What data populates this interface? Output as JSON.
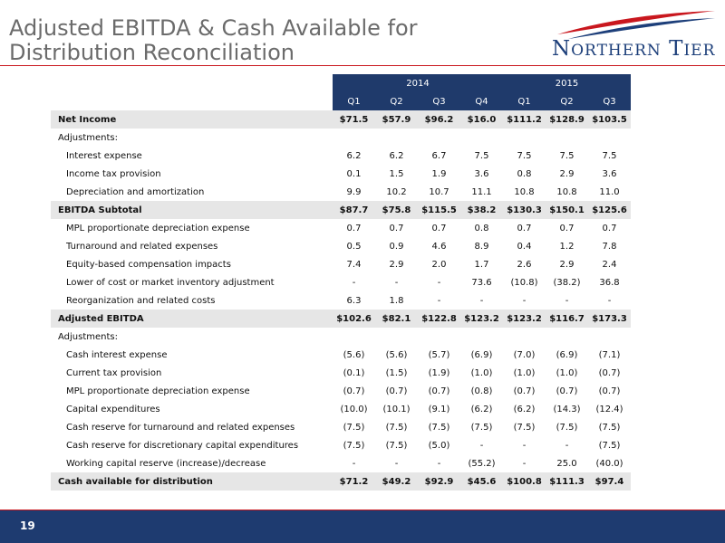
{
  "title": "Adjusted EBITDA & Cash Available for Distribution Reconciliation",
  "logo": {
    "text_first": "N",
    "text_rest": "ORTHERN",
    "text2_first": "T",
    "text2_rest": "IER",
    "accent_color": "#c9171e",
    "brand_color": "#1d3f7a"
  },
  "years": [
    "2014",
    "2015"
  ],
  "quarters": [
    "Q1",
    "Q2",
    "Q3",
    "Q4",
    "Q1",
    "Q2",
    "Q3"
  ],
  "rows": [
    {
      "label": "Net Income",
      "style": "shade",
      "values": [
        "$71.5",
        "$57.9",
        "$96.2",
        "$16.0",
        "$111.2",
        "$128.9",
        "$103.5"
      ]
    },
    {
      "label": "Adjustments:",
      "style": "plain",
      "values": []
    },
    {
      "label": "Interest expense",
      "style": "indent",
      "values": [
        "6.2",
        "6.2",
        "6.7",
        "7.5",
        "7.5",
        "7.5",
        "7.5"
      ]
    },
    {
      "label": "Income tax provision",
      "style": "indent",
      "values": [
        "0.1",
        "1.5",
        "1.9",
        "3.6",
        "0.8",
        "2.9",
        "3.6"
      ]
    },
    {
      "label": "Depreciation and amortization",
      "style": "indent",
      "values": [
        "9.9",
        "10.2",
        "10.7",
        "11.1",
        "10.8",
        "10.8",
        "11.0"
      ]
    },
    {
      "label": "EBITDA Subtotal",
      "style": "shade",
      "values": [
        "$87.7",
        "$75.8",
        "$115.5",
        "$38.2",
        "$130.3",
        "$150.1",
        "$125.6"
      ]
    },
    {
      "label": "MPL proportionate depreciation expense",
      "style": "indent",
      "values": [
        "0.7",
        "0.7",
        "0.7",
        "0.8",
        "0.7",
        "0.7",
        "0.7"
      ]
    },
    {
      "label": "Turnaround and related expenses",
      "style": "indent",
      "values": [
        "0.5",
        "0.9",
        "4.6",
        "8.9",
        "0.4",
        "1.2",
        "7.8"
      ]
    },
    {
      "label": "Equity-based compensation impacts",
      "style": "indent",
      "values": [
        "7.4",
        "2.9",
        "2.0",
        "1.7",
        "2.6",
        "2.9",
        "2.4"
      ]
    },
    {
      "label": "Lower of cost or market inventory adjustment",
      "style": "indent",
      "values": [
        "-",
        "-",
        "-",
        "73.6",
        "(10.8)",
        "(38.2)",
        "36.8"
      ]
    },
    {
      "label": "Reorganization and related costs",
      "style": "indent",
      "values": [
        "6.3",
        "1.8",
        "-",
        "-",
        "-",
        "-",
        "-"
      ]
    },
    {
      "label": "Adjusted EBITDA",
      "style": "shade",
      "values": [
        "$102.6",
        "$82.1",
        "$122.8",
        "$123.2",
        "$123.2",
        "$116.7",
        "$173.3"
      ]
    },
    {
      "label": "Adjustments:",
      "style": "plain",
      "values": []
    },
    {
      "label": "Cash interest expense",
      "style": "indent",
      "values": [
        "(5.6)",
        "(5.6)",
        "(5.7)",
        "(6.9)",
        "(7.0)",
        "(6.9)",
        "(7.1)"
      ]
    },
    {
      "label": "Current tax provision",
      "style": "indent",
      "values": [
        "(0.1)",
        "(1.5)",
        "(1.9)",
        "(1.0)",
        "(1.0)",
        "(1.0)",
        "(0.7)"
      ]
    },
    {
      "label": "MPL proportionate depreciation expense",
      "style": "indent",
      "values": [
        "(0.7)",
        "(0.7)",
        "(0.7)",
        "(0.8)",
        "(0.7)",
        "(0.7)",
        "(0.7)"
      ]
    },
    {
      "label": "Capital expenditures",
      "style": "indent",
      "values": [
        "(10.0)",
        "(10.1)",
        "(9.1)",
        "(6.2)",
        "(6.2)",
        "(14.3)",
        "(12.4)"
      ]
    },
    {
      "label": "Cash reserve for turnaround and related expenses",
      "style": "indent",
      "values": [
        "(7.5)",
        "(7.5)",
        "(7.5)",
        "(7.5)",
        "(7.5)",
        "(7.5)",
        "(7.5)"
      ]
    },
    {
      "label": "Cash reserve for discretionary capital expenditures",
      "style": "indent",
      "values": [
        "(7.5)",
        "(7.5)",
        "(5.0)",
        "-",
        "-",
        "-",
        "(7.5)"
      ]
    },
    {
      "label": "Working capital reserve (increase)/decrease",
      "style": "indent",
      "values": [
        "-",
        "-",
        "-",
        "(55.2)",
        "-",
        "25.0",
        "(40.0)"
      ]
    },
    {
      "label": "Cash available for distribution",
      "style": "shade",
      "values": [
        "$71.2",
        "$49.2",
        "$92.9",
        "$45.6",
        "$100.8",
        "$111.3",
        "$97.4"
      ]
    }
  ],
  "footer": {
    "page_number": "19"
  }
}
